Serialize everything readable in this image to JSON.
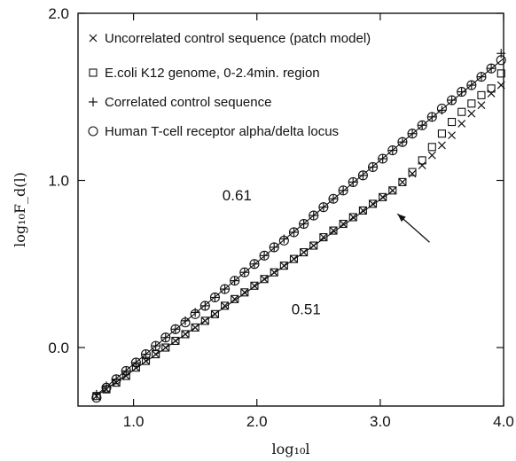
{
  "chart_data": {
    "type": "scatter",
    "title": "",
    "xlabel": "log₁₀l",
    "ylabel": "log₁₀F_d(l)",
    "xlim": [
      0.55,
      4.0
    ],
    "ylim": [
      -0.35,
      2.0
    ],
    "xticks": [
      1.0,
      2.0,
      3.0,
      4.0
    ],
    "yticks": [
      0.0,
      1.0,
      2.0
    ],
    "xtick_labels": [
      "1.0",
      "2.0",
      "3.0",
      "4.0"
    ],
    "ytick_labels": [
      "0.0",
      "1.0",
      "2.0"
    ],
    "grid": false,
    "legend_position": "top-left",
    "annotations": [
      {
        "text": "0.61",
        "x": 1.72,
        "y": 0.88
      },
      {
        "text": "0.51",
        "x": 2.28,
        "y": 0.2
      }
    ],
    "arrow": {
      "from": [
        3.4,
        0.63
      ],
      "to": [
        3.14,
        0.8
      ]
    },
    "fit_lines": [
      {
        "slope": 0.61,
        "intercept": -0.71,
        "x_range": [
          0.7,
          4.0
        ]
      },
      {
        "slope": 0.51,
        "intercept": -0.645,
        "x_range": [
          0.7,
          3.1
        ]
      }
    ],
    "series": [
      {
        "name": "Uncorrelated control sequence (patch model)",
        "marker": "x",
        "x": [
          0.7,
          0.78,
          0.86,
          0.94,
          1.02,
          1.1,
          1.18,
          1.26,
          1.34,
          1.42,
          1.5,
          1.58,
          1.66,
          1.74,
          1.82,
          1.9,
          1.98,
          2.06,
          2.14,
          2.22,
          2.3,
          2.38,
          2.46,
          2.54,
          2.62,
          2.7,
          2.78,
          2.86,
          2.94,
          3.02,
          3.1,
          3.18,
          3.26,
          3.34,
          3.42,
          3.5,
          3.58,
          3.66,
          3.74,
          3.82,
          3.9,
          3.98
        ],
        "y": [
          -0.29,
          -0.25,
          -0.21,
          -0.17,
          -0.12,
          -0.08,
          -0.04,
          0.0,
          0.04,
          0.08,
          0.12,
          0.16,
          0.2,
          0.25,
          0.29,
          0.33,
          0.37,
          0.41,
          0.45,
          0.49,
          0.53,
          0.57,
          0.61,
          0.66,
          0.7,
          0.74,
          0.78,
          0.82,
          0.86,
          0.9,
          0.94,
          0.99,
          1.04,
          1.09,
          1.15,
          1.21,
          1.27,
          1.34,
          1.4,
          1.45,
          1.52,
          1.57
        ]
      },
      {
        "name": "E.coli K12 genome, 0-2.4min. region",
        "marker": "square",
        "x": [
          0.7,
          0.78,
          0.86,
          0.94,
          1.02,
          1.1,
          1.18,
          1.26,
          1.34,
          1.42,
          1.5,
          1.58,
          1.66,
          1.74,
          1.82,
          1.9,
          1.98,
          2.06,
          2.14,
          2.22,
          2.3,
          2.38,
          2.46,
          2.54,
          2.62,
          2.7,
          2.78,
          2.86,
          2.94,
          3.02,
          3.1,
          3.18,
          3.26,
          3.34,
          3.42,
          3.5,
          3.58,
          3.66,
          3.74,
          3.82,
          3.9,
          3.98
        ],
        "y": [
          -0.29,
          -0.25,
          -0.21,
          -0.17,
          -0.12,
          -0.08,
          -0.04,
          0.0,
          0.04,
          0.08,
          0.12,
          0.16,
          0.2,
          0.25,
          0.29,
          0.33,
          0.37,
          0.41,
          0.45,
          0.49,
          0.53,
          0.57,
          0.61,
          0.66,
          0.7,
          0.74,
          0.78,
          0.82,
          0.86,
          0.9,
          0.94,
          0.99,
          1.05,
          1.12,
          1.2,
          1.28,
          1.35,
          1.41,
          1.46,
          1.51,
          1.55,
          1.64
        ]
      },
      {
        "name": "Correlated control sequence",
        "marker": "plus",
        "x": [
          0.7,
          0.78,
          0.86,
          0.94,
          1.02,
          1.1,
          1.18,
          1.26,
          1.34,
          1.42,
          1.5,
          1.58,
          1.66,
          1.74,
          1.82,
          1.9,
          1.98,
          2.06,
          2.14,
          2.22,
          2.3,
          2.38,
          2.46,
          2.54,
          2.62,
          2.7,
          2.78,
          2.86,
          2.94,
          3.02,
          3.1,
          3.18,
          3.26,
          3.34,
          3.42,
          3.5,
          3.58,
          3.66,
          3.74,
          3.82,
          3.9,
          3.98
        ],
        "y": [
          -0.28,
          -0.23,
          -0.19,
          -0.14,
          -0.09,
          -0.04,
          0.01,
          0.06,
          0.11,
          0.16,
          0.21,
          0.25,
          0.3,
          0.35,
          0.4,
          0.45,
          0.5,
          0.55,
          0.6,
          0.65,
          0.69,
          0.74,
          0.79,
          0.84,
          0.89,
          0.94,
          0.99,
          1.03,
          1.08,
          1.13,
          1.18,
          1.23,
          1.28,
          1.33,
          1.38,
          1.42,
          1.48,
          1.53,
          1.57,
          1.62,
          1.67,
          1.76
        ]
      },
      {
        "name": "Human T-cell receptor alpha/delta locus",
        "marker": "circle",
        "x": [
          0.7,
          0.78,
          0.86,
          0.94,
          1.02,
          1.1,
          1.18,
          1.26,
          1.34,
          1.42,
          1.5,
          1.58,
          1.66,
          1.74,
          1.82,
          1.9,
          1.98,
          2.06,
          2.14,
          2.22,
          2.3,
          2.38,
          2.46,
          2.54,
          2.62,
          2.7,
          2.78,
          2.86,
          2.94,
          3.02,
          3.1,
          3.18,
          3.26,
          3.34,
          3.42,
          3.5,
          3.58,
          3.66,
          3.74,
          3.82,
          3.9,
          3.98
        ],
        "y": [
          -0.3,
          -0.24,
          -0.19,
          -0.14,
          -0.09,
          -0.04,
          0.01,
          0.06,
          0.11,
          0.15,
          0.2,
          0.25,
          0.3,
          0.35,
          0.4,
          0.45,
          0.5,
          0.55,
          0.6,
          0.64,
          0.69,
          0.74,
          0.79,
          0.84,
          0.89,
          0.94,
          0.99,
          1.03,
          1.08,
          1.13,
          1.18,
          1.23,
          1.28,
          1.33,
          1.38,
          1.43,
          1.48,
          1.53,
          1.57,
          1.62,
          1.67,
          1.72
        ]
      }
    ]
  }
}
